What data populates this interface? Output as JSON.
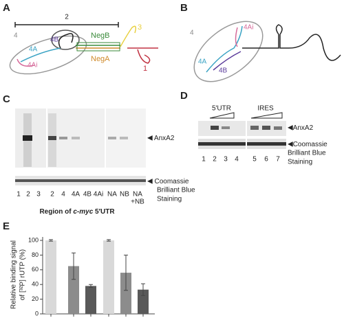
{
  "panel_a": {
    "label": "A",
    "region_labels": [
      "2",
      "4",
      "4B",
      "4A",
      "4Ai",
      "NegB",
      "NegA",
      "3",
      "1"
    ]
  },
  "panel_b": {
    "label": "B",
    "region_labels": [
      "4",
      "4Ai",
      "4A",
      "4B"
    ]
  },
  "panel_c": {
    "label": "C",
    "band_label": "AnxA2",
    "stain_label": [
      "Coomassie",
      "Brilliant Blue",
      "Staining"
    ],
    "lanes": [
      "1",
      "2",
      "3",
      "2",
      "4",
      "4A",
      "4B",
      "4Ai",
      "NA",
      "NB",
      "NA"
    ],
    "lane_extra": "+NB",
    "region_caption": [
      "Region of ",
      "c-myc",
      " 5′UTR"
    ]
  },
  "panel_d": {
    "label": "D",
    "groups": [
      "5′UTR",
      "IRES"
    ],
    "band_label": "AnxA2",
    "stain_label": [
      "Coomassie",
      "Brilliant Blue",
      "Staining"
    ],
    "lanes": [
      "1",
      "2",
      "3",
      "4",
      "5",
      "6",
      "7"
    ]
  },
  "panel_e": {
    "label": "E",
    "y_axis_label": [
      "Relative binding signal",
      "of [³²P] rUTP (%)"
    ],
    "ylim": [
      0,
      100
    ],
    "yticks": [
      0,
      20,
      40,
      60,
      80,
      100
    ],
    "values": [
      100,
      65,
      38,
      100,
      56,
      33
    ],
    "errors": [
      1,
      18,
      2,
      1,
      24,
      8
    ],
    "colors": [
      "#d9d9d9",
      "#8c8c8c",
      "#595959",
      "#d9d9d9",
      "#8c8c8c",
      "#595959"
    ]
  }
}
